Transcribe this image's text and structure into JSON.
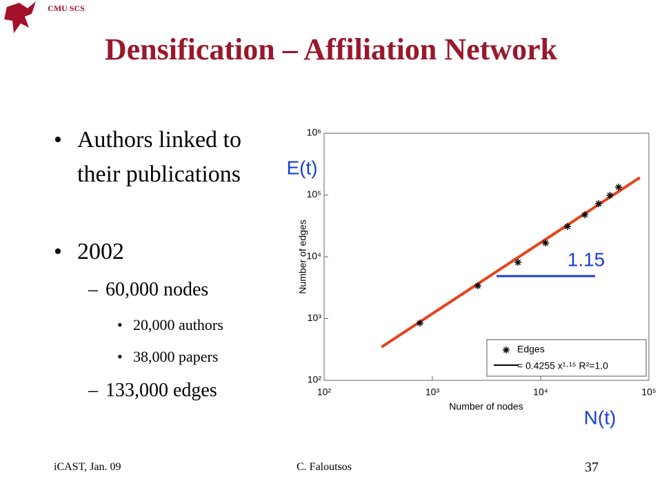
{
  "header": {
    "org": "CMU SCS",
    "title": "Densification – Affiliation Network"
  },
  "bullets": [
    {
      "text": "Authors linked to their publications"
    },
    {
      "text": "2002",
      "children": [
        {
          "text": "60,000 nodes",
          "children": [
            {
              "text": "20,000 authors"
            },
            {
              "text": "38,000 papers"
            }
          ]
        },
        {
          "text": "133,000 edges"
        }
      ]
    }
  ],
  "footer": {
    "left": "iCAST, Jan. 09",
    "center": "C. Faloutsos",
    "page": "37"
  },
  "chart_data": {
    "type": "scatter",
    "x_label": "Number of nodes",
    "y_label": "Number of edges",
    "log_x": true,
    "log_y": true,
    "xlim": [
      100,
      100000
    ],
    "ylim": [
      100,
      1000000
    ],
    "xticks": [
      {
        "value": 100,
        "label": "10²"
      },
      {
        "value": 1000,
        "label": "10³"
      },
      {
        "value": 10000,
        "label": "10⁴"
      },
      {
        "value": 100000,
        "label": "10⁵"
      }
    ],
    "yticks": [
      {
        "value": 100,
        "label": "10²"
      },
      {
        "value": 1000,
        "label": "10³"
      },
      {
        "value": 10000,
        "label": "10⁴"
      },
      {
        "value": 100000,
        "label": "10⁵"
      },
      {
        "value": 1000000,
        "label": "10⁶"
      }
    ],
    "x": [
      768,
      2630,
      6170,
      11100,
      17700,
      25600,
      34300,
      43600,
      52500
    ],
    "series": [
      {
        "name": "Edges",
        "color": "#000000",
        "values": [
          846,
          3390,
          8130,
          16700,
          31000,
          47900,
          72400,
          98800,
          134000
        ]
      }
    ],
    "fit": {
      "name": "= 0.4255 x¹·¹⁵ R²=1.0",
      "color": "#e8421c",
      "x": [
        340,
        82600
      ],
      "values": [
        347,
        192000
      ]
    },
    "legend": "lower right",
    "annotations": {
      "y_var": "E(t)",
      "x_var": "N(t)",
      "slope": "1.15"
    }
  }
}
